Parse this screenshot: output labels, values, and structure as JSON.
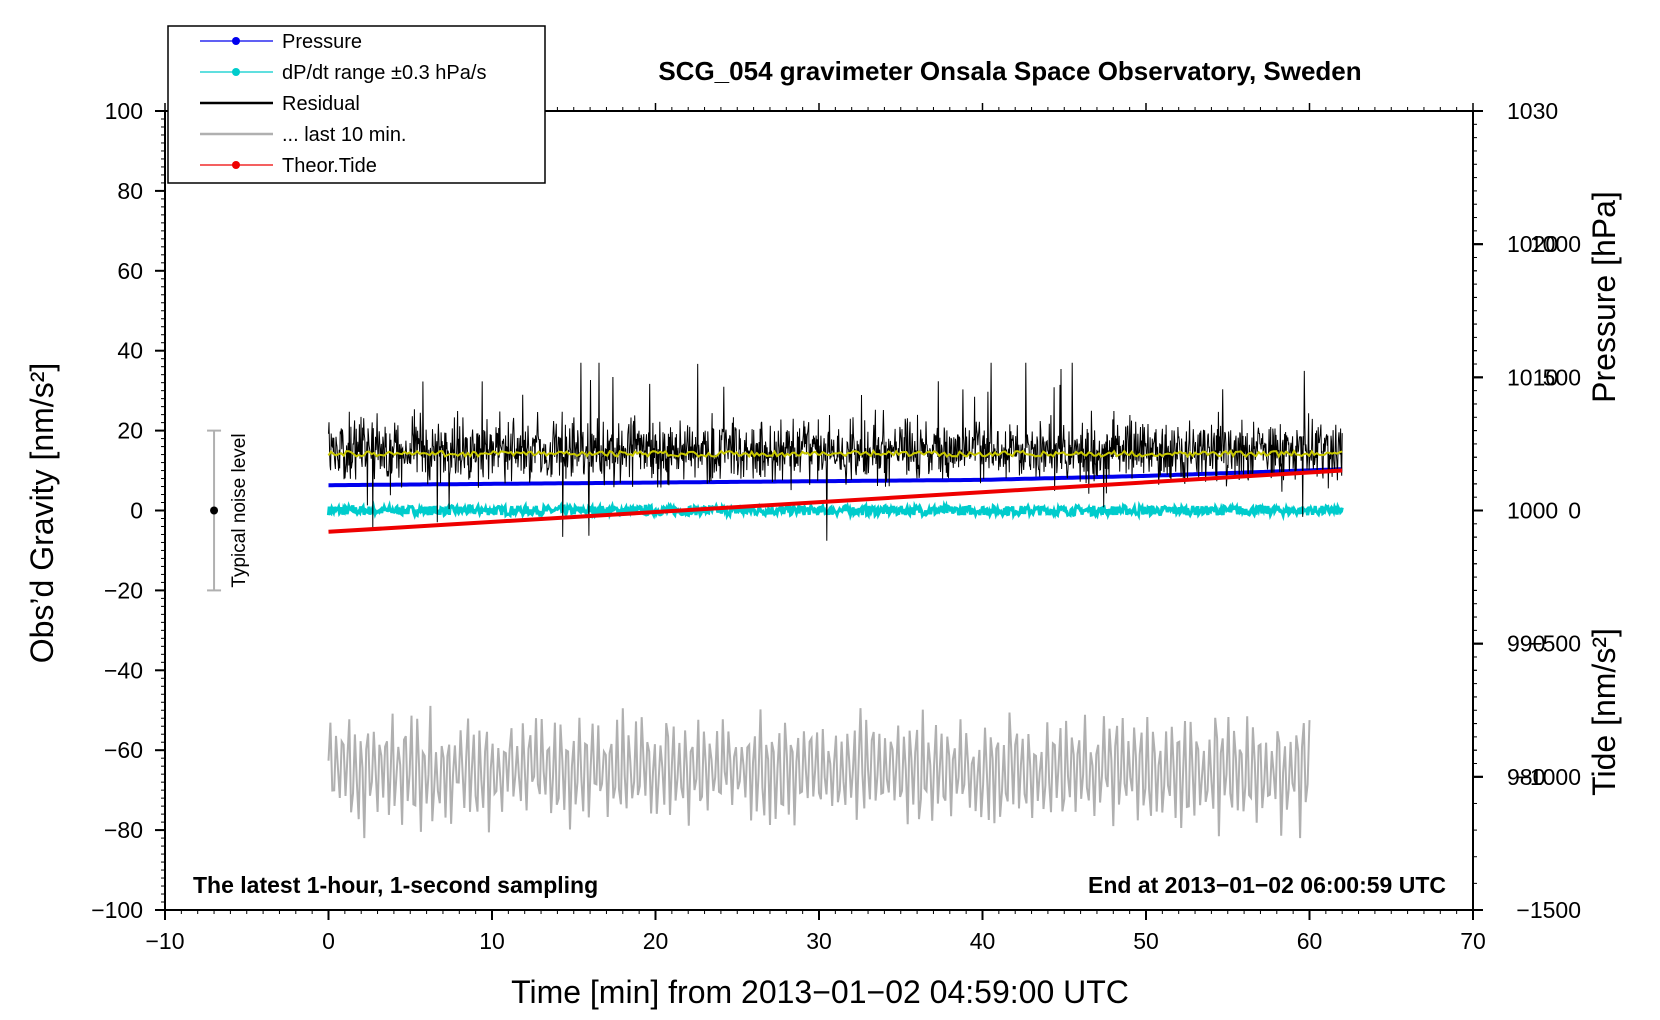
{
  "chart_data": {
    "type": "line",
    "title": "SCG_054 gravimeter Onsala Space Observatory, Sweden",
    "xlabel": "Time [min] from 2013−01−02 04:59:00 UTC",
    "ylabel_left": "Obs’d Gravity [nm/s²]",
    "ylabel_right_top": "Pressure [hPa]",
    "ylabel_right_bottom": "Tide [nm/s²]",
    "xlim": [
      -10,
      70
    ],
    "ylim_left": [
      -100,
      100
    ],
    "ylim_pressure": [
      970,
      1030
    ],
    "ylim_tide": [
      -1500,
      1500
    ],
    "x_ticks": [
      "−10",
      "0",
      "10",
      "20",
      "30",
      "40",
      "50",
      "60",
      "70"
    ],
    "y_ticks_left": [
      "100",
      "80",
      "60",
      "40",
      "20",
      "0",
      "−20",
      "−40",
      "−60",
      "−80",
      "−100"
    ],
    "y_ticks_pressure": [
      "1030",
      "1020",
      "1010",
      "1000",
      "990",
      "980"
    ],
    "y_ticks_tide": [
      "1000",
      "500",
      "0",
      "−500",
      "−1000",
      "−1500"
    ],
    "annotation_left": "The latest 1-hour, 1-second sampling",
    "annotation_right": "End at 2013−01−02 06:00:59 UTC",
    "noise_label": "Typical noise level",
    "noise_bar": {
      "x": -7,
      "center": 0,
      "low": -20,
      "high": 20
    },
    "legend": [
      {
        "label": "Pressure",
        "color": "#0000ee",
        "marker": true
      },
      {
        "label": "dP/dt range ±0.3 hPa/s",
        "color": "#00cccc",
        "marker": true
      },
      {
        "label": "Residual",
        "color": "#000000",
        "marker": false
      },
      {
        "label": "... last 10 min.",
        "color": "#b0b0b0",
        "marker": false
      },
      {
        "label": "Theor.Tide",
        "color": "#ee0000",
        "marker": true
      }
    ],
    "series": [
      {
        "name": "Pressure",
        "axis": "pressure",
        "color": "#0000ee",
        "x": [
          0,
          10,
          20,
          30,
          40,
          50,
          62
        ],
        "y": [
          1001.9,
          1002.0,
          1002.1,
          1002.2,
          1002.3,
          1002.6,
          1003.1
        ]
      },
      {
        "name": "dP/dt range",
        "axis": "pressure",
        "color": "#00cccc",
        "x": [
          0,
          62
        ],
        "y": [
          1000.0,
          1000.0
        ],
        "noise": 0.35
      },
      {
        "name": "Residual",
        "axis": "left",
        "color": "#000000",
        "x": [
          0,
          62
        ],
        "y": [
          15,
          15
        ],
        "noise": 10,
        "min": -9,
        "max": 37
      },
      {
        "name": "Residual smoothed",
        "axis": "left",
        "color": "#c8c800",
        "x": [
          0,
          62
        ],
        "y": [
          14.2,
          14.2
        ]
      },
      {
        "name": "... last 10 min.",
        "axis": "left",
        "color": "#b0b0b0",
        "x": [
          0,
          60
        ],
        "y_center": -65,
        "y_min": -82,
        "y_max": -48
      },
      {
        "name": "Theor.Tide",
        "axis": "tide",
        "color": "#ee0000",
        "x": [
          0,
          62
        ],
        "y": [
          -80,
          150
        ]
      }
    ]
  }
}
